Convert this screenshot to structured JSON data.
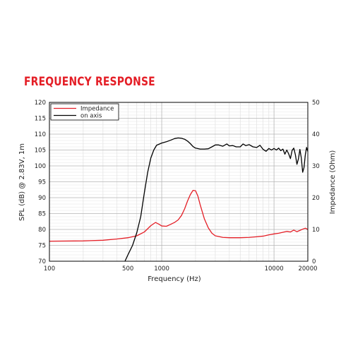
{
  "heading": "FREQUENCY RESPONSE",
  "chart_data": {
    "type": "line",
    "xlabel": "Frequency (Hz)",
    "ylabel": "SPL (dB) @ 2.83V, 1m",
    "y2label": "Impedance (Ohm)",
    "xscale": "log",
    "xlim": [
      100,
      20000
    ],
    "ylim": [
      70,
      120
    ],
    "y2lim": [
      0,
      50
    ],
    "xticks": [
      100,
      500,
      1000,
      10000,
      20000
    ],
    "yticks": [
      70,
      75,
      80,
      85,
      90,
      95,
      100,
      105,
      110,
      115,
      120
    ],
    "y2ticks": [
      0,
      10,
      20,
      30,
      40,
      50
    ],
    "grid": true,
    "legend_position": "top-left",
    "series": [
      {
        "name": "Impedance",
        "color": "#e41e26",
        "axis": "right",
        "points": [
          [
            100,
            6.3
          ],
          [
            200,
            6.4
          ],
          [
            300,
            6.6
          ],
          [
            400,
            7.0
          ],
          [
            500,
            7.4
          ],
          [
            600,
            8.0
          ],
          [
            700,
            9.2
          ],
          [
            800,
            11.2
          ],
          [
            880,
            12.2
          ],
          [
            950,
            11.6
          ],
          [
            1000,
            11.1
          ],
          [
            1100,
            11.0
          ],
          [
            1200,
            11.6
          ],
          [
            1300,
            12.2
          ],
          [
            1400,
            13.0
          ],
          [
            1500,
            14.4
          ],
          [
            1600,
            16.5
          ],
          [
            1700,
            19.0
          ],
          [
            1800,
            21.0
          ],
          [
            1900,
            22.3
          ],
          [
            2000,
            22.2
          ],
          [
            2100,
            20.5
          ],
          [
            2200,
            17.8
          ],
          [
            2400,
            13.3
          ],
          [
            2600,
            10.5
          ],
          [
            2800,
            8.8
          ],
          [
            3000,
            8.0
          ],
          [
            3500,
            7.5
          ],
          [
            4000,
            7.4
          ],
          [
            5000,
            7.4
          ],
          [
            6000,
            7.5
          ],
          [
            7000,
            7.7
          ],
          [
            8000,
            7.9
          ],
          [
            9000,
            8.3
          ],
          [
            10000,
            8.6
          ],
          [
            11000,
            8.8
          ],
          [
            12000,
            9.1
          ],
          [
            13000,
            9.4
          ],
          [
            14000,
            9.2
          ],
          [
            15000,
            9.8
          ],
          [
            16000,
            9.3
          ],
          [
            17000,
            9.7
          ],
          [
            18000,
            10.1
          ],
          [
            19000,
            10.4
          ],
          [
            20000,
            10.0
          ]
        ]
      },
      {
        "name": "on axis",
        "color": "#000000",
        "axis": "left",
        "points": [
          [
            400,
            66.5
          ],
          [
            450,
            68.5
          ],
          [
            500,
            72.0
          ],
          [
            550,
            75.0
          ],
          [
            600,
            79.0
          ],
          [
            650,
            84.0
          ],
          [
            700,
            91.5
          ],
          [
            750,
            98.0
          ],
          [
            800,
            102.5
          ],
          [
            850,
            105.0
          ],
          [
            900,
            106.5
          ],
          [
            1000,
            107.2
          ],
          [
            1100,
            107.6
          ],
          [
            1200,
            108.1
          ],
          [
            1300,
            108.6
          ],
          [
            1400,
            108.8
          ],
          [
            1500,
            108.7
          ],
          [
            1600,
            108.4
          ],
          [
            1700,
            107.8
          ],
          [
            1800,
            107.0
          ],
          [
            1900,
            106.1
          ],
          [
            2000,
            105.6
          ],
          [
            2200,
            105.3
          ],
          [
            2400,
            105.3
          ],
          [
            2600,
            105.4
          ],
          [
            2800,
            106.0
          ],
          [
            3000,
            106.6
          ],
          [
            3200,
            106.6
          ],
          [
            3500,
            106.2
          ],
          [
            3800,
            106.9
          ],
          [
            4000,
            106.3
          ],
          [
            4300,
            106.4
          ],
          [
            4600,
            106.0
          ],
          [
            5000,
            106.0
          ],
          [
            5300,
            106.9
          ],
          [
            5600,
            106.4
          ],
          [
            6000,
            106.7
          ],
          [
            6500,
            106.0
          ],
          [
            7000,
            105.8
          ],
          [
            7500,
            106.5
          ],
          [
            8000,
            105.2
          ],
          [
            8500,
            104.6
          ],
          [
            9000,
            105.5
          ],
          [
            9500,
            105.0
          ],
          [
            10000,
            105.5
          ],
          [
            10500,
            105.0
          ],
          [
            11000,
            105.6
          ],
          [
            11500,
            104.8
          ],
          [
            12000,
            105.3
          ],
          [
            12500,
            103.7
          ],
          [
            13000,
            105.0
          ],
          [
            13500,
            103.8
          ],
          [
            14000,
            102.3
          ],
          [
            14500,
            104.9
          ],
          [
            15000,
            105.6
          ],
          [
            15500,
            103.5
          ],
          [
            16000,
            100.5
          ],
          [
            16500,
            102.2
          ],
          [
            17000,
            105.2
          ],
          [
            17500,
            102.5
          ],
          [
            18000,
            98.0
          ],
          [
            18500,
            99.5
          ],
          [
            19000,
            103.5
          ],
          [
            19500,
            105.8
          ],
          [
            20000,
            104.5
          ]
        ]
      }
    ]
  }
}
